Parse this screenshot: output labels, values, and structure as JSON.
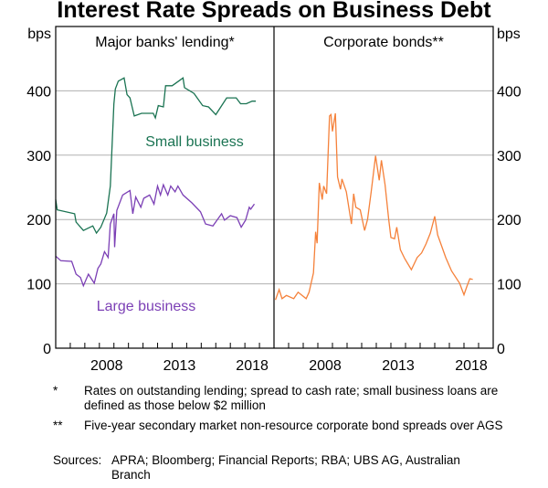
{
  "chart_data": {
    "type": "line",
    "title": "Interest Rate Spreads on Business Debt",
    "ylabel_left": "bps",
    "ylabel_right": "bps",
    "ylim": [
      0,
      500
    ],
    "yticks": [
      0,
      100,
      200,
      300,
      400
    ],
    "xlim": [
      2005,
      2020
    ],
    "grid": true,
    "panels": [
      {
        "title": "Major banks' lending*",
        "xtick_labels": [
          "2008",
          "2013",
          "2018"
        ],
        "series": [
          {
            "name": "Small business",
            "color": "#1a7352",
            "x": [
              2005.0,
              2005.1,
              2006.3,
              2006.4,
              2006.9,
              2007.55,
              2007.8,
              2008.1,
              2008.5,
              2008.75,
              2009.0,
              2009.1,
              2009.3,
              2009.7,
              2009.9,
              2010.1,
              2010.4,
              2010.9,
              2011.7,
              2011.85,
              2012.05,
              2012.4,
              2012.55,
              2013.0,
              2013.75,
              2013.85,
              2014.5,
              2015.1,
              2015.5,
              2016.0,
              2016.75,
              2017.4,
              2017.7,
              2018.1,
              2018.5,
              2018.75
            ],
            "y": [
              231,
              215,
              209,
              196,
              183,
              190,
              179,
              188,
              210,
              252,
              380,
              403,
              415,
              420,
              394,
              389,
              361,
              365,
              365,
              358,
              377,
              375,
              408,
              408,
              420,
              405,
              396,
              377,
              375,
              363,
              389,
              389,
              380,
              380,
              384,
              384
            ]
          },
          {
            "name": "Large business",
            "color": "#7b3fb5",
            "x": [
              2005.0,
              2005.35,
              2006.1,
              2006.4,
              2006.7,
              2006.9,
              2007.25,
              2007.65,
              2007.9,
              2008.1,
              2008.35,
              2008.6,
              2008.75,
              2009.0,
              2009.05,
              2009.2,
              2009.6,
              2010.1,
              2010.3,
              2010.5,
              2010.85,
              2011.05,
              2011.45,
              2011.75,
              2012.0,
              2012.2,
              2012.4,
              2012.7,
              2012.9,
              2013.2,
              2013.4,
              2013.75,
              2014.35,
              2014.95,
              2015.3,
              2015.8,
              2016.4,
              2016.6,
              2017.0,
              2017.45,
              2017.75,
              2018.05,
              2018.3,
              2018.4,
              2018.65
            ],
            "y": [
              143,
              136,
              135,
              115,
              110,
              97,
              115,
              101,
              124,
              131,
              150,
              141,
              193,
              209,
              157,
              214,
              238,
              245,
              209,
              235,
              219,
              233,
              238,
              224,
              252,
              238,
              254,
              238,
              252,
              243,
              252,
              238,
              226,
              212,
              193,
              190,
              209,
              199,
              206,
              203,
              188,
              199,
              219,
              216,
              224
            ]
          }
        ]
      },
      {
        "title": "Corporate bonds**",
        "xtick_labels": [
          "2008",
          "2013",
          "2018"
        ],
        "series": [
          {
            "color": "#f5813a",
            "x": [
              2005.1,
              2005.35,
              2005.55,
              2005.85,
              2006.35,
              2006.65,
              2007.2,
              2007.4,
              2007.7,
              2007.85,
              2007.95,
              2008.1,
              2008.3,
              2008.4,
              2008.6,
              2008.8,
              2008.9,
              2009.0,
              2009.2,
              2009.35,
              2009.55,
              2009.65,
              2009.95,
              2010.3,
              2010.45,
              2010.6,
              2010.9,
              2011.2,
              2011.4,
              2011.65,
              2011.95,
              2012.2,
              2012.35,
              2012.6,
              2012.85,
              2013.0,
              2013.25,
              2013.4,
              2013.65,
              2013.95,
              2014.4,
              2014.8,
              2015.1,
              2015.4,
              2015.7,
              2016.0,
              2016.2,
              2016.5,
              2016.75,
              2017.15,
              2017.7,
              2018.0,
              2018.2,
              2018.4,
              2018.6
            ],
            "y": [
              75,
              91,
              77,
              82,
              77,
              87,
              77,
              87,
              117,
              181,
              163,
              257,
              231,
              252,
              240,
              361,
              363,
              337,
              365,
              266,
              247,
              263,
              243,
              193,
              240,
              219,
              215,
              183,
              200,
              243,
              299,
              261,
              292,
              254,
              200,
              172,
              170,
              188,
              153,
              139,
              122,
              141,
              148,
              162,
              179,
              205,
              176,
              157,
              141,
              120,
              101,
              83,
              96,
              108,
              107
            ]
          }
        ]
      }
    ],
    "series_labels": {
      "small": "Small business",
      "large": "Large business"
    }
  },
  "notes": [
    {
      "mark": "*",
      "text": "Rates on outstanding lending; spread to cash rate; small business loans are defined as those below $2 million"
    },
    {
      "mark": "**",
      "text": "Five-year secondary market non-resource corporate bond spreads over AGS"
    },
    {
      "mark": "Sources:",
      "text": "APRA; Bloomberg; Financial Reports; RBA; UBS AG, Australian Branch"
    }
  ]
}
